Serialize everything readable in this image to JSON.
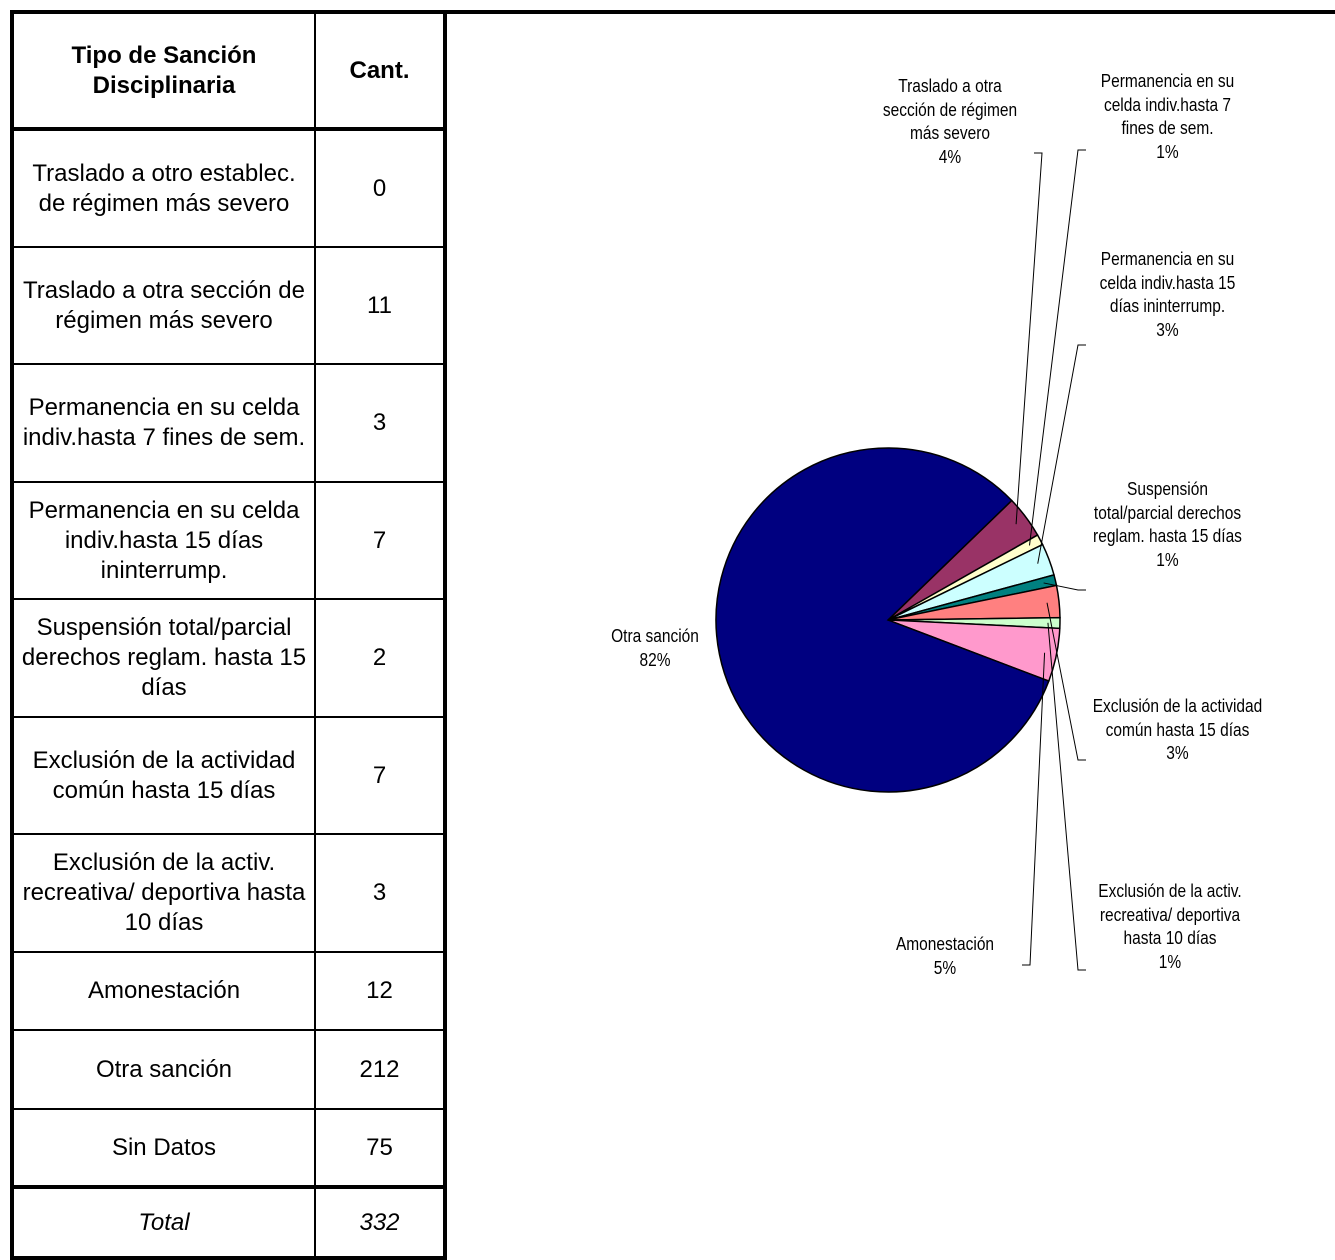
{
  "table": {
    "header": [
      "Tipo de Sanción Disciplinaria",
      "Cant."
    ],
    "rows": [
      [
        "Traslado a otro establec. de régimen más severo",
        "0"
      ],
      [
        "Traslado a otra sección de régimen más severo",
        "11"
      ],
      [
        "Permanencia en su celda indiv.hasta 7 fines de sem.",
        "3"
      ],
      [
        "Permanencia en su celda indiv.hasta 15 días ininterrump.",
        "7"
      ],
      [
        "Suspensión total/parcial derechos reglam. hasta 15 días",
        "2"
      ],
      [
        "Exclusión de la actividad común hasta 15 días",
        "7"
      ],
      [
        "Exclusión de la activ. recreativa/ deportiva hasta 10 días",
        "3"
      ],
      [
        "Amonestación",
        "12"
      ],
      [
        "Otra sanción",
        "212"
      ],
      [
        "Sin Datos",
        "75"
      ]
    ],
    "total": [
      "Total",
      "332"
    ]
  },
  "chart_data": {
    "type": "pie",
    "categories": [
      "Traslado a otra sección de régimen más severo",
      "Permanencia en su celda indiv.hasta 7 fines de sem.",
      "Permanencia en su celda indiv.hasta 15 días ininterrump.",
      "Suspensión total/parcial derechos reglam. hasta 15 días",
      "Exclusión de la actividad común hasta 15 días",
      "Exclusión de la activ. recreativa/ deportiva hasta 10 días",
      "Amonestación",
      "Otra sanción"
    ],
    "values": [
      4,
      1,
      3,
      1,
      3,
      1,
      5,
      82
    ],
    "value_labels": [
      "4%",
      "1%",
      "3%",
      "1%",
      "3%",
      "1%",
      "5%",
      "82%"
    ],
    "colors": [
      "#993366",
      "#ffffcc",
      "#ccffff",
      "#008080",
      "#ff8080",
      "#ccffcc",
      "#ff99cc",
      "#000080"
    ]
  }
}
